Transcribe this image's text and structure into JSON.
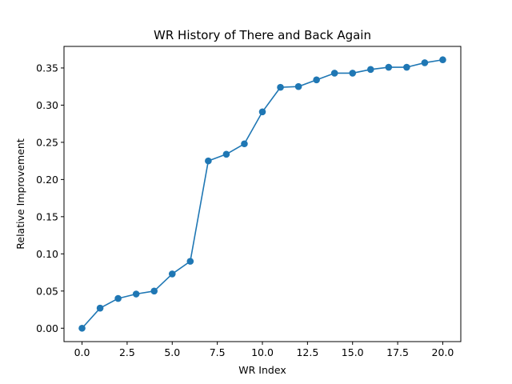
{
  "chart_data": {
    "type": "line",
    "title": "WR History of There and Back Again",
    "xlabel": "WR Index",
    "ylabel": "Relative Improvement",
    "x": [
      0,
      1,
      2,
      3,
      4,
      5,
      6,
      7,
      8,
      9,
      10,
      11,
      12,
      13,
      14,
      15,
      16,
      17,
      18,
      19,
      20
    ],
    "series": [
      {
        "values": [
          0.0,
          0.027,
          0.04,
          0.046,
          0.05,
          0.073,
          0.09,
          0.225,
          0.234,
          0.248,
          0.291,
          0.324,
          0.325,
          0.334,
          0.343,
          0.343,
          0.348,
          0.351,
          0.351,
          0.357,
          0.361
        ],
        "color": "#1f77b4",
        "marker": "circle"
      }
    ],
    "xlim": [
      -1.0,
      21.0
    ],
    "ylim": [
      -0.018,
      0.379
    ],
    "xticks": [
      0,
      2.5,
      5,
      7.5,
      10,
      12.5,
      15,
      17.5,
      20
    ],
    "xtick_labels": [
      "0.0",
      "2.5",
      "5.0",
      "7.5",
      "10.0",
      "12.5",
      "15.0",
      "17.5",
      "20.0"
    ],
    "yticks": [
      0,
      0.05,
      0.1,
      0.15,
      0.2,
      0.25,
      0.3,
      0.35
    ],
    "ytick_labels": [
      "0.00",
      "0.05",
      "0.10",
      "0.15",
      "0.20",
      "0.25",
      "0.30",
      "0.35"
    ],
    "grid": false,
    "legend": false
  }
}
